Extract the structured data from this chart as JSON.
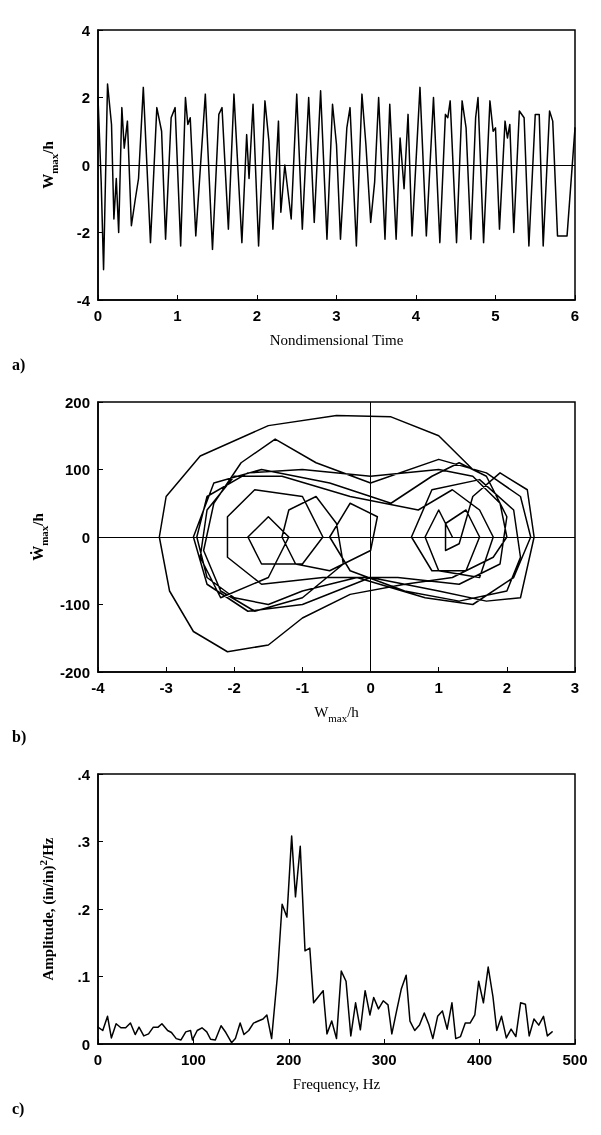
{
  "chart_data": [
    {
      "type": "line",
      "xlabel": "Nondimensional Time",
      "ylabel": "W$_{max}$/h",
      "annotations": [
        "a)"
      ],
      "xlim": [
        0,
        6
      ],
      "xticks": [
        0,
        1,
        2,
        3,
        4,
        5,
        6
      ],
      "ylim": [
        -4,
        4
      ],
      "yticks": [
        -4,
        -2,
        0,
        2,
        4
      ],
      "marker": "none",
      "line_style": "solid",
      "ref_lines": [
        {
          "axis": "y",
          "value": 0,
          "label": null
        }
      ],
      "series": [
        {
          "color": "#000000",
          "x": [
            0,
            0.04,
            0.07,
            0.12,
            0.17,
            0.2,
            0.23,
            0.26,
            0.3,
            0.33,
            0.37,
            0.42,
            0.47,
            0.51,
            0.57,
            0.66,
            0.74,
            0.8,
            0.85,
            0.92,
            0.97,
            1.04,
            1.1,
            1.13,
            1.16,
            1.23,
            1.35,
            1.44,
            1.52,
            1.56,
            1.64,
            1.71,
            1.81,
            1.87,
            1.9,
            1.95,
            2.02,
            2.1,
            2.15,
            2.2,
            2.27,
            2.3,
            2.35,
            2.43,
            2.5,
            2.57,
            2.65,
            2.72,
            2.8,
            2.88,
            2.95,
            3.0,
            3.05,
            3.13,
            3.17,
            3.25,
            3.32,
            3.37,
            3.43,
            3.48,
            3.53,
            3.61,
            3.67,
            3.75,
            3.8,
            3.85,
            3.9,
            3.95,
            4.05,
            4.13,
            4.22,
            4.3,
            4.37,
            4.4,
            4.43,
            4.51,
            4.58,
            4.63,
            4.69,
            4.75,
            4.78,
            4.85,
            4.93,
            4.97,
            5.0,
            5.05,
            5.12,
            5.15,
            5.18,
            5.23,
            5.3,
            5.36,
            5.42,
            5.5,
            5.55,
            5.6,
            5.68,
            5.72,
            5.78,
            5.9,
            6.0
          ],
          "values": [
            2.0,
            -0.5,
            -3.1,
            2.4,
            1.2,
            -1.6,
            -0.4,
            -2.0,
            1.7,
            0.5,
            1.3,
            -1.8,
            -1.0,
            -0.4,
            2.3,
            -2.3,
            1.7,
            1.0,
            -2.2,
            1.4,
            1.7,
            -2.4,
            2.0,
            1.2,
            1.4,
            -2.1,
            2.1,
            -2.5,
            1.5,
            1.7,
            -1.9,
            2.1,
            -2.3,
            0.9,
            -0.4,
            1.8,
            -2.4,
            1.9,
            0.7,
            -1.9,
            1.3,
            -1.4,
            0.0,
            -1.6,
            2.1,
            -1.9,
            2.0,
            -1.7,
            2.2,
            -2.2,
            1.8,
            0.6,
            -2.2,
            1.1,
            1.7,
            -2.4,
            2.1,
            0.6,
            -1.7,
            -0.5,
            2.0,
            -2.2,
            1.8,
            -2.2,
            0.8,
            -0.7,
            1.5,
            -2.1,
            2.3,
            -2.1,
            2.0,
            -2.3,
            1.5,
            1.4,
            1.9,
            -2.3,
            1.9,
            1.1,
            -2.2,
            1.4,
            2.0,
            -2.3,
            1.9,
            1.0,
            1.1,
            -1.9,
            1.3,
            0.8,
            1.2,
            -2.0,
            1.6,
            1.4,
            -2.4,
            1.5,
            1.5,
            -2.4,
            1.6,
            1.3,
            -2.1,
            -2.1,
            1.1
          ]
        }
      ]
    },
    {
      "type": "line",
      "xlabel": "W$_{max}$/h",
      "ylabel": "Ẇ$_{max}$/h",
      "annotations": [
        "b)"
      ],
      "xlim": [
        -4,
        3
      ],
      "xticks": [
        -4,
        -3,
        -2,
        -1,
        0,
        1,
        2,
        3
      ],
      "ylim": [
        -200,
        200
      ],
      "yticks": [
        -200,
        -100,
        0,
        100,
        200
      ],
      "marker": "none",
      "line_style": "solid",
      "ref_lines": [
        {
          "axis": "y",
          "value": 0,
          "label": null
        },
        {
          "axis": "x",
          "value": 0,
          "label": null
        }
      ],
      "series": [
        {
          "color": "#000000",
          "x": [
            1.5,
            1.0,
            0.3,
            -0.5,
            -1.5,
            -2.5,
            -3.0,
            -3.1,
            -2.95,
            -2.6,
            -2.1,
            -1.5,
            -1.0,
            -0.3,
            0.5,
            1.2,
            1.8,
            2.0,
            1.9,
            1.5,
            1.0,
            0,
            -1.0,
            -1.8,
            -2.4,
            -2.55,
            -2.4,
            -2.0,
            -1.5,
            -1.0,
            -0.2,
            0.8,
            1.5,
            2.1,
            2.35,
            2.2,
            1.7,
            1.0,
            0,
            -0.8,
            -1.4,
            -1.9,
            -2.3,
            -2.45,
            -2.2,
            -1.7,
            -1.0,
            -0.4,
            -0.5,
            -0.8,
            -1.2,
            -1.3,
            -1.1,
            -0.6,
            0,
            0.1,
            -0.3,
            -0.6,
            -0.3,
            0.5,
            1.3,
            2.0,
            2.2,
            2.1,
            1.6,
            0.9,
            0.6,
            0.9,
            1.4,
            1.6,
            1.4,
            1.1,
            1.1,
            1.3,
            1.5,
            1.9,
            2.3,
            2.4,
            2.2,
            1.7,
            1.0,
            0,
            -1.0,
            -1.8,
            -2.4,
            -2.6,
            -2.3,
            -1.6,
            -0.6,
            0.3,
            0.9,
            1.3,
            1.7,
            2.0,
            1.9,
            1.3,
            0.4,
            -0.7,
            -1.6,
            -2.1,
            -2.1,
            -1.7,
            -1.0,
            -0.7,
            -1.0,
            -1.6,
            -1.8,
            -1.5,
            -1.2,
            -1.5,
            -2.2,
            -2.5,
            -2.4,
            -2.0,
            -1.3,
            -0.3,
            0.7,
            1.2,
            1.6,
            1.8,
            1.6,
            1.0,
            0.8,
            1.0,
            1.2
          ],
          "values": [
            100,
            150,
            178,
            180,
            165,
            120,
            60,
            0,
            -80,
            -140,
            -170,
            -160,
            -120,
            -85,
            -70,
            -60,
            -30,
            0,
            50,
            90,
            100,
            90,
            100,
            95,
            60,
            0,
            -60,
            -90,
            -100,
            -80,
            -60,
            -90,
            -100,
            -60,
            0,
            60,
            95,
            115,
            80,
            110,
            145,
            110,
            50,
            -20,
            -80,
            -110,
            -90,
            -40,
            20,
            60,
            40,
            0,
            -40,
            -50,
            -20,
            30,
            50,
            0,
            -50,
            -80,
            -95,
            -80,
            -30,
            40,
            85,
            70,
            0,
            -50,
            -50,
            0,
            40,
            20,
            -20,
            -10,
            60,
            95,
            70,
            0,
            -90,
            -95,
            -80,
            -60,
            -100,
            -110,
            -70,
            0,
            80,
            100,
            80,
            50,
            90,
            110,
            90,
            30,
            -40,
            -70,
            -60,
            -60,
            -70,
            -30,
            30,
            70,
            60,
            0,
            -40,
            -40,
            0,
            30,
            0,
            -60,
            -90,
            -30,
            40,
            90,
            90,
            60,
            40,
            70,
            40,
            0,
            -60,
            -50,
            0,
            40,
            0
          ]
        }
      ]
    },
    {
      "type": "line",
      "xlabel": "Frequency, Hz",
      "ylabel": "Amplitude, (in/in)$^{2}$/Hz",
      "annotations": [
        "c)"
      ],
      "xlim": [
        0,
        500
      ],
      "xticks": [
        0,
        100,
        200,
        300,
        400,
        500
      ],
      "ylim": [
        0,
        0.4
      ],
      "yticks": [
        0,
        {
          "value": 0.1,
          "label": ".1"
        },
        {
          "value": 0.2,
          "label": ".2"
        },
        {
          "value": 0.3,
          "label": ".3"
        },
        {
          "value": 0.4,
          "label": ".4"
        }
      ],
      "marker": "none",
      "line_style": "solid",
      "series": [
        {
          "color": "#000000",
          "x": [
            0,
            5,
            10,
            14,
            19,
            24,
            29,
            34,
            39,
            43,
            48,
            53,
            58,
            63,
            67,
            73,
            77,
            82,
            87,
            92,
            97,
            99,
            104,
            109,
            114,
            118,
            123,
            129,
            134,
            140,
            144,
            149,
            153,
            158,
            163,
            168,
            173,
            177,
            182,
            188,
            193,
            198,
            203,
            207,
            212,
            217,
            222,
            226,
            231,
            236,
            240,
            245,
            250,
            255,
            260,
            265,
            270,
            275,
            280,
            285,
            289,
            294,
            299,
            304,
            308,
            313,
            318,
            323,
            327,
            332,
            337,
            342,
            347,
            351,
            356,
            361,
            366,
            371,
            375,
            380,
            385,
            390,
            395,
            399,
            404,
            409,
            414,
            418,
            423,
            428,
            433,
            438,
            443,
            448,
            452,
            457,
            462,
            467,
            471,
            476
          ],
          "values": [
            0.025,
            0.02,
            0.041,
            0.009,
            0.03,
            0.024,
            0.024,
            0.031,
            0.014,
            0.025,
            0.012,
            0.015,
            0.025,
            0.025,
            0.03,
            0.02,
            0.017,
            0.008,
            0.006,
            0.018,
            0.02,
            0.006,
            0.02,
            0.024,
            0.018,
            0.007,
            0.006,
            0.027,
            0.017,
            0.002,
            0.008,
            0.031,
            0.014,
            0.02,
            0.031,
            0.034,
            0.037,
            0.043,
            0.008,
            0.1,
            0.207,
            0.188,
            0.308,
            0.218,
            0.293,
            0.138,
            0.142,
            0.061,
            0.07,
            0.079,
            0.015,
            0.034,
            0.008,
            0.108,
            0.093,
            0.012,
            0.061,
            0.021,
            0.079,
            0.043,
            0.069,
            0.052,
            0.064,
            0.058,
            0.015,
            0.049,
            0.082,
            0.102,
            0.034,
            0.02,
            0.028,
            0.046,
            0.028,
            0.008,
            0.041,
            0.049,
            0.022,
            0.061,
            0.008,
            0.011,
            0.031,
            0.031,
            0.043,
            0.093,
            0.061,
            0.114,
            0.07,
            0.02,
            0.041,
            0.009,
            0.022,
            0.011,
            0.061,
            0.059,
            0.012,
            0.037,
            0.028,
            0.041,
            0.012,
            0.018
          ]
        }
      ]
    }
  ]
}
